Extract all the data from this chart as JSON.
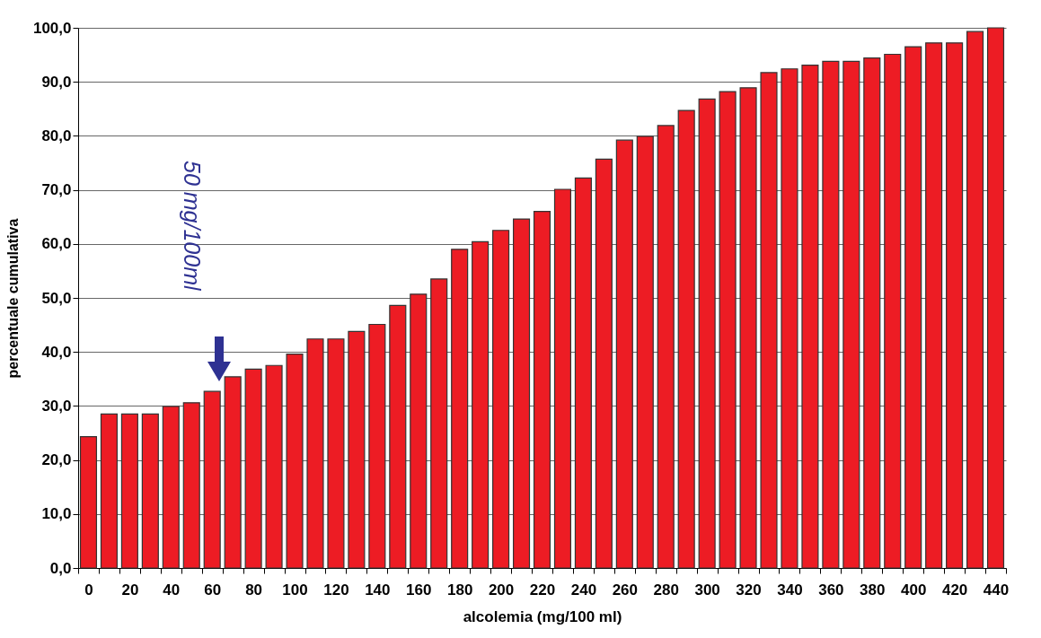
{
  "chart_data": {
    "type": "bar",
    "xlabel": "alcolemia (mg/100 ml)",
    "ylabel": "percentuale cumulativa",
    "categories": [
      "0",
      null,
      "20",
      null,
      "40",
      null,
      "60",
      null,
      "80",
      null,
      "100",
      null,
      "120",
      null,
      "140",
      null,
      "160",
      null,
      "180",
      null,
      "200",
      null,
      "220",
      null,
      "240",
      null,
      "260",
      null,
      "280",
      null,
      "300",
      null,
      "320",
      null,
      "340",
      null,
      "360",
      null,
      "380",
      null,
      "400",
      null,
      "420",
      null,
      "440"
    ],
    "values": [
      24.3,
      28.5,
      28.5,
      28.5,
      29.9,
      30.6,
      32.7,
      35.4,
      36.8,
      37.5,
      39.6,
      42.4,
      42.4,
      43.8,
      45.1,
      48.6,
      50.7,
      53.5,
      59.0,
      60.4,
      62.5,
      64.6,
      66.0,
      70.1,
      72.2,
      75.7,
      79.2,
      79.9,
      81.9,
      84.7,
      86.8,
      88.2,
      88.9,
      91.7,
      92.4,
      93.1,
      93.8,
      93.8,
      94.4,
      95.1,
      96.5,
      97.2,
      97.2,
      99.3,
      100
    ],
    "color": "#ed1c24",
    "ylim": [
      0,
      100
    ],
    "yticks": [
      {
        "value": 0,
        "label": "0,0"
      },
      {
        "value": 10,
        "label": "10,0"
      },
      {
        "value": 20,
        "label": "20,0"
      },
      {
        "value": 30,
        "label": "30,0"
      },
      {
        "value": 40,
        "label": "40,0"
      },
      {
        "value": 50,
        "label": "50,0"
      },
      {
        "value": 60,
        "label": "60,0"
      },
      {
        "value": 70,
        "label": "70,0"
      },
      {
        "value": 80,
        "label": "80,0"
      },
      {
        "value": 90,
        "label": "90,0"
      },
      {
        "value": 100,
        "label": "100,0"
      }
    ],
    "grid": "y",
    "annotations": [
      "50 mg/100ml"
    ]
  }
}
